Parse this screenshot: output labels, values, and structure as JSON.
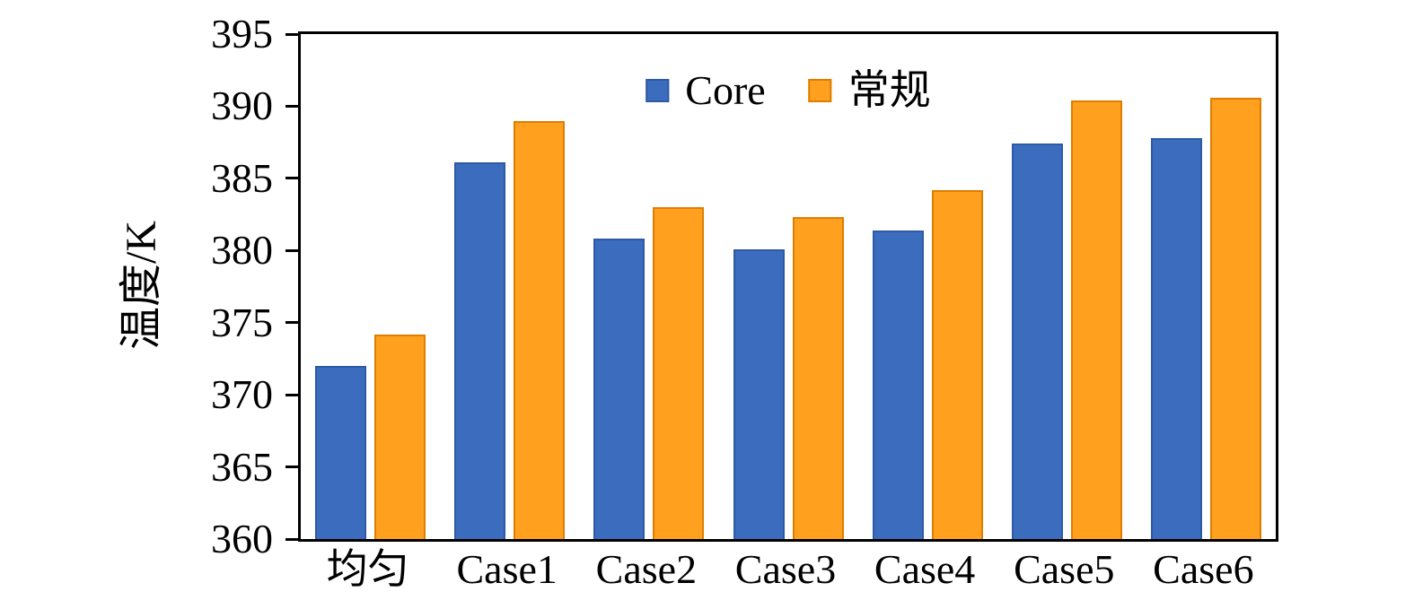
{
  "chart_data": {
    "type": "bar",
    "title": "",
    "xlabel": "",
    "ylabel": "温度/K",
    "ylim": [
      360,
      395
    ],
    "yticks": [
      360,
      365,
      370,
      375,
      380,
      385,
      390,
      395
    ],
    "grid": false,
    "legend_position": "top-center",
    "categories": [
      "均匀",
      "Case1",
      "Case2",
      "Case3",
      "Case4",
      "Case5",
      "Case6"
    ],
    "series": [
      {
        "name": "Core",
        "color": "#3C6CBE",
        "border_color": "#2E59A5",
        "values": [
          372.0,
          386.1,
          380.8,
          380.1,
          381.4,
          387.4,
          387.8
        ]
      },
      {
        "name": "常规",
        "color": "#FFA01E",
        "border_color": "#E07D00",
        "values": [
          374.2,
          389.0,
          383.0,
          382.3,
          384.2,
          390.4,
          390.6
        ]
      }
    ]
  }
}
